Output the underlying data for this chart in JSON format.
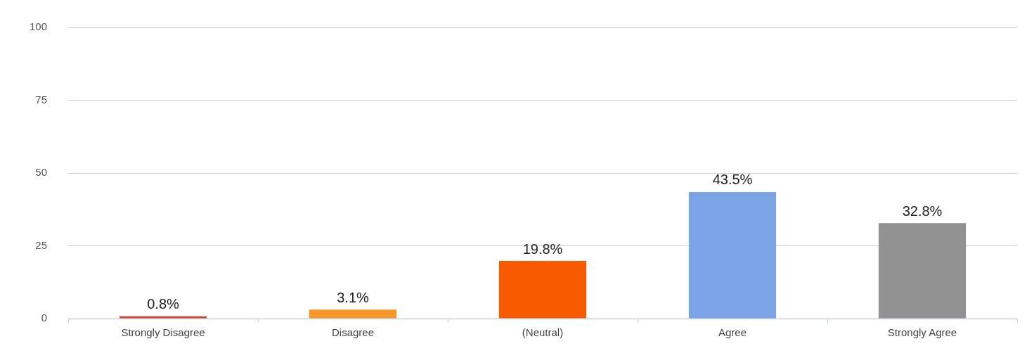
{
  "chart_data": {
    "type": "bar",
    "categories": [
      "Strongly Disagree",
      "Disagree",
      "(Neutral)",
      "Agree",
      "Strongly Agree"
    ],
    "values": [
      0.8,
      3.1,
      19.8,
      43.5,
      32.8
    ],
    "colors": [
      "#d9432b",
      "#f7972a",
      "#f85a00",
      "#7ba4e6",
      "#929292"
    ],
    "value_labels": [
      "0.8%",
      "3.1%",
      "19.8%",
      "43.5%",
      "32.8%"
    ],
    "ylim": [
      0,
      100
    ],
    "yticks": [
      0,
      25,
      50,
      75,
      100
    ],
    "grid": "y",
    "legend": false
  }
}
